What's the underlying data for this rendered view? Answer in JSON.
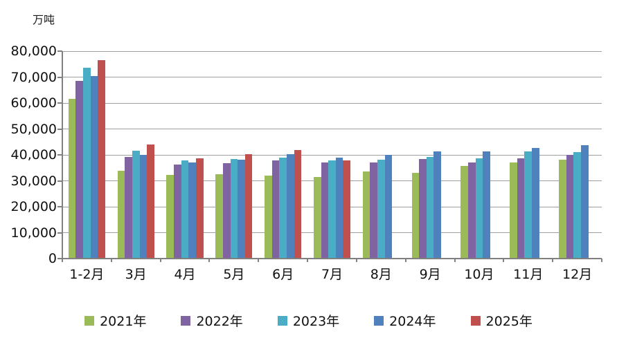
{
  "chart_data": {
    "type": "bar",
    "unit_label": "万吨",
    "categories": [
      "1-2月",
      "3月",
      "4月",
      "5月",
      "6月",
      "7月",
      "8月",
      "9月",
      "10月",
      "11月",
      "12月"
    ],
    "series": [
      {
        "name": "2021年",
        "color": "#9BBB59",
        "values": [
          61700,
          34000,
          32200,
          32600,
          32000,
          31400,
          33500,
          33200,
          35800,
          37000,
          38100
        ]
      },
      {
        "name": "2022年",
        "color": "#8064A2",
        "values": [
          68600,
          39200,
          36200,
          36700,
          37800,
          37100,
          37200,
          38500,
          37000,
          38700,
          40000
        ]
      },
      {
        "name": "2023年",
        "color": "#4BACC6",
        "values": [
          73500,
          41600,
          38000,
          38500,
          39000,
          37800,
          38100,
          39300,
          38800,
          41300,
          41200
        ]
      },
      {
        "name": "2024年",
        "color": "#4F81BD",
        "values": [
          70400,
          39900,
          37000,
          38200,
          40400,
          39000,
          39900,
          41400,
          41400,
          42700,
          43700
        ]
      },
      {
        "name": "2025年",
        "color": "#C0504D",
        "values": [
          76500,
          44100,
          38800,
          40300,
          42000,
          38000,
          null,
          null,
          null,
          null,
          null
        ]
      }
    ],
    "ylim": [
      0,
      80000
    ],
    "ytick_step": 10000,
    "ytick_labels": [
      "0",
      "10,000",
      "20,000",
      "30,000",
      "40,000",
      "50,000",
      "60,000",
      "70,000",
      "80,000"
    ],
    "grid": true,
    "legend_position": "bottom",
    "axis_color": "#808080",
    "grid_color": "#9e9e9e",
    "text_color": "#111111"
  }
}
